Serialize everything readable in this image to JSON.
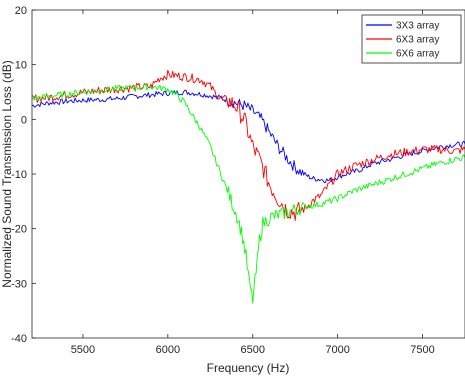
{
  "chart_data": {
    "type": "line",
    "xlabel": "Frequency (Hz)",
    "ylabel": "Normalized Sound Transmission Loss (dB)",
    "xlim": [
      5200,
      7750
    ],
    "ylim": [
      -40,
      20
    ],
    "xticks": [
      5500,
      6000,
      6500,
      7000,
      7500
    ],
    "yticks": [
      -40,
      -30,
      -20,
      -10,
      0,
      10,
      20
    ],
    "grid": false,
    "legend": "top-right",
    "series": [
      {
        "name": "3X3 array",
        "color": "#0000ff",
        "noise": 0.5,
        "x": [
          5200,
          5300,
          5400,
          5500,
          5600,
          5700,
          5800,
          5900,
          6000,
          6100,
          6200,
          6300,
          6400,
          6450,
          6500,
          6550,
          6600,
          6650,
          6700,
          6750,
          6800,
          6850,
          6900,
          6950,
          7000,
          7050,
          7100,
          7150,
          7200,
          7300,
          7400,
          7500,
          7600,
          7700,
          7750
        ],
        "y": [
          2.5,
          3,
          3.3,
          3.5,
          3.6,
          3.8,
          4.2,
          4.5,
          4.8,
          5,
          4.6,
          4,
          3,
          2.5,
          1.5,
          0,
          -2.5,
          -5,
          -7,
          -8.8,
          -10,
          -10.8,
          -11,
          -11.2,
          -10.5,
          -10,
          -9.6,
          -9,
          -8.2,
          -7.4,
          -6.5,
          -5.8,
          -5,
          -4.6,
          -4.5
        ]
      },
      {
        "name": "6X3 array",
        "color": "#ff0000",
        "noise": 0.8,
        "x": [
          5200,
          5300,
          5400,
          5500,
          5600,
          5700,
          5800,
          5900,
          5950,
          6000,
          6050,
          6100,
          6150,
          6200,
          6250,
          6300,
          6350,
          6400,
          6450,
          6500,
          6550,
          6600,
          6650,
          6700,
          6750,
          6800,
          6850,
          6900,
          6950,
          7000,
          7100,
          7200,
          7300,
          7400,
          7500,
          7600,
          7700,
          7750
        ],
        "y": [
          3.8,
          4,
          4.5,
          4.9,
          5.3,
          5.6,
          5.8,
          6,
          7.5,
          8.2,
          8,
          7.8,
          7.5,
          7.2,
          6,
          4,
          3.5,
          2.5,
          0,
          -5,
          -8,
          -12,
          -14.5,
          -16.5,
          -17,
          -16.5,
          -15,
          -14,
          -12,
          -10,
          -8.5,
          -7.5,
          -6.5,
          -6,
          -5.5,
          -5.5,
          -5.8,
          -5.5
        ]
      },
      {
        "name": "6X6 array",
        "color": "#00ff00",
        "noise": 0.6,
        "x": [
          5200,
          5300,
          5400,
          5500,
          5600,
          5700,
          5800,
          5900,
          6000,
          6050,
          6100,
          6150,
          6200,
          6250,
          6300,
          6350,
          6400,
          6420,
          6440,
          6460,
          6480,
          6500,
          6520,
          6540,
          6560,
          6600,
          6650,
          6700,
          6750,
          6800,
          6900,
          7000,
          7100,
          7200,
          7300,
          7400,
          7500,
          7600,
          7700,
          7750
        ],
        "y": [
          3.8,
          4.2,
          4.6,
          5,
          5.3,
          5.6,
          5.8,
          6,
          5.5,
          4.5,
          3,
          0.5,
          -2,
          -5,
          -9,
          -13,
          -17,
          -19,
          -21.5,
          -25,
          -30,
          -33,
          -28,
          -22,
          -19,
          -18,
          -17.5,
          -17,
          -16.5,
          -16,
          -15.5,
          -14.5,
          -13,
          -12,
          -11,
          -10,
          -9,
          -8,
          -7.2,
          -7
        ]
      }
    ]
  }
}
